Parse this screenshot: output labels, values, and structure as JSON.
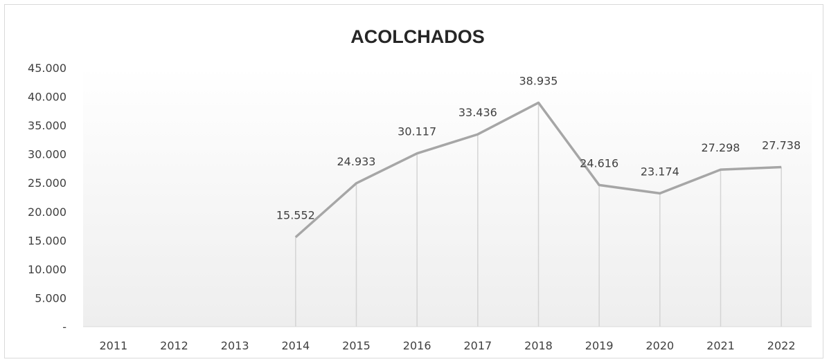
{
  "chart_data": {
    "type": "line",
    "title": "ACOLCHADOS",
    "categories": [
      "2011",
      "2012",
      "2013",
      "2014",
      "2015",
      "2016",
      "2017",
      "2018",
      "2019",
      "2020",
      "2021",
      "2022"
    ],
    "values": [
      null,
      null,
      null,
      15552,
      24933,
      30117,
      33436,
      38935,
      24616,
      23174,
      27298,
      27738
    ],
    "data_labels": [
      "",
      "",
      "",
      "15.552",
      "24.933",
      "30.117",
      "33.436",
      "38.935",
      "24.616",
      "23.174",
      "27.298",
      "27.738"
    ],
    "y_ticks": [
      0,
      5000,
      10000,
      15000,
      20000,
      25000,
      30000,
      35000,
      40000,
      45000
    ],
    "y_tick_labels": [
      "-",
      "5.000",
      "10.000",
      "15.000",
      "20.000",
      "25.000",
      "30.000",
      "35.000",
      "40.000",
      "45.000"
    ],
    "ylim": [
      0,
      45000
    ],
    "drop_lines": true,
    "grid": false,
    "legend": "none",
    "colors": {
      "line": "#a6a6a6",
      "drop_line": "#d4d4d4",
      "text": "#404040",
      "title": "#262626",
      "axis": "#d9d9d9"
    }
  }
}
